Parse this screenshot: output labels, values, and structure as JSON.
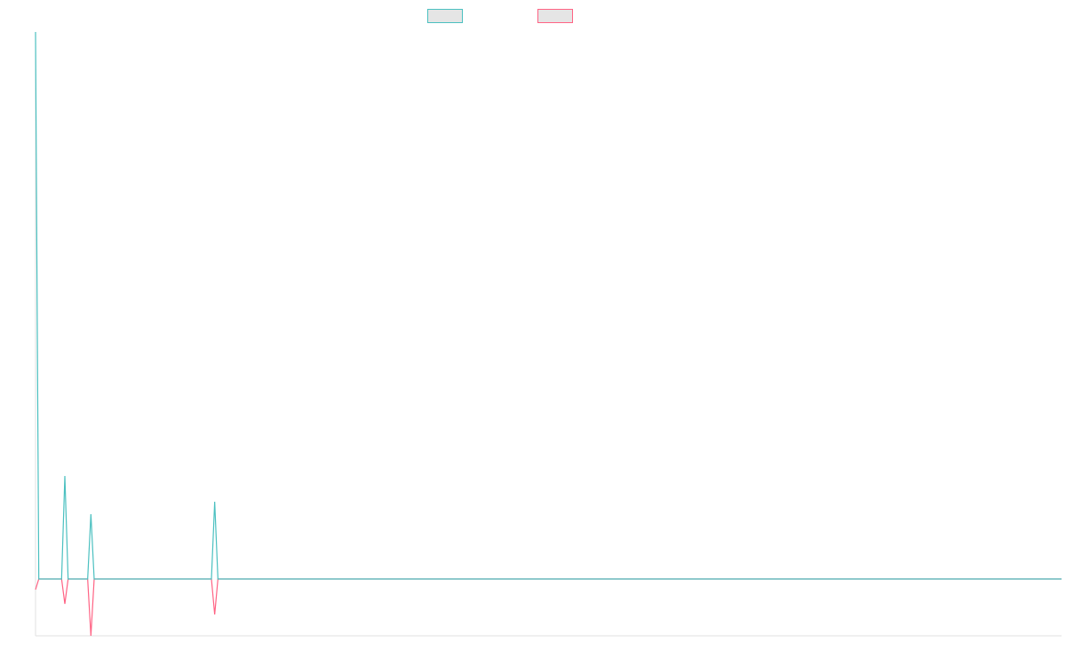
{
  "chart_data": {
    "type": "line",
    "title": "",
    "xlabel": "",
    "ylabel": "",
    "grid": false,
    "legend_placement": "top",
    "point_count": 316,
    "ylim": [
      -64,
      616
    ],
    "series": [
      {
        "color": "#4bc0c0",
        "legend_fill": "#e5e5e5",
        "baseline": 0,
        "points": [
          [
            0,
            616
          ],
          [
            9,
            116
          ],
          [
            17,
            73
          ],
          [
            55,
            87
          ]
        ]
      },
      {
        "color": "#ff6384",
        "legend_fill": "#e5e5e5",
        "baseline": 0,
        "points": [
          [
            0,
            -12
          ],
          [
            9,
            -28
          ],
          [
            17,
            -64
          ],
          [
            55,
            -40
          ]
        ]
      }
    ],
    "axis_color": "#e0e0e0"
  }
}
